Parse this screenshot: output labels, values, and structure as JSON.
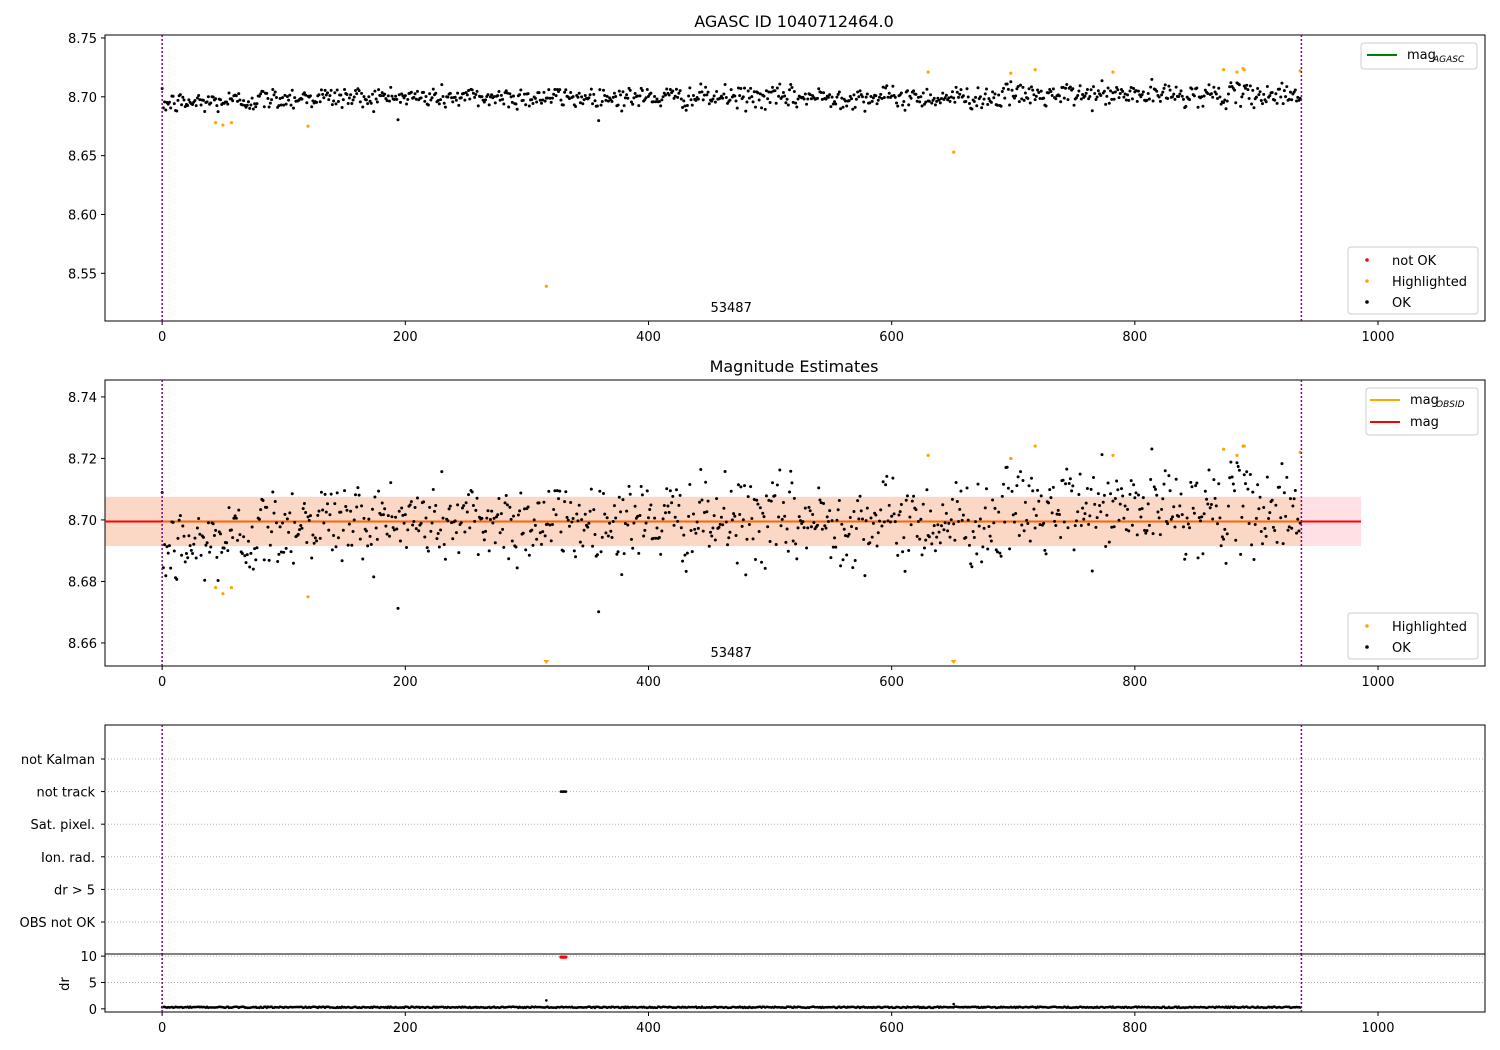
{
  "figure_title": "AGASC ID 1040712464.0",
  "colors": {
    "ok": "#000000",
    "highlighted": "#ffa500",
    "not_ok": "#ff0000",
    "mag_agasc_line": "#008000",
    "mag_obsid_line": "#ffa500",
    "mag_line": "#ff0000",
    "band_inner": "#fbd7c6",
    "band_outer": "#ffe0e4",
    "vline": "#800080"
  },
  "chart_data": [
    {
      "id": "agasc",
      "type": "scatter",
      "title": "AGASC ID 1040712464.0",
      "xlim": [
        -47,
        1088
      ],
      "ylim": [
        8.5095,
        8.7525
      ],
      "xticks": [
        0,
        200,
        400,
        600,
        800,
        1000
      ],
      "yticks": [
        8.55,
        8.6,
        8.65,
        8.7,
        8.75
      ],
      "ytick_labels": [
        "8.55",
        "8.60",
        "8.65",
        "8.70",
        "8.75"
      ],
      "vlines_x": [
        0,
        937
      ],
      "center_label": "53487",
      "center_label_x": 468,
      "legend_lines": [
        {
          "label": "mag",
          "subscript": "AGASC",
          "color": "#008000"
        }
      ],
      "legend_points": [
        {
          "label": "not OK",
          "color": "#ff0000"
        },
        {
          "label": "Highlighted",
          "color": "#ffa500"
        },
        {
          "label": "OK",
          "color": "#000000"
        }
      ],
      "ok_series": {
        "n": 937,
        "base": 8.6995,
        "spread": 0.0047
      },
      "highlighted_points": [
        [
          44,
          8.678
        ],
        [
          50,
          8.676
        ],
        [
          57,
          8.678
        ],
        [
          120,
          8.675
        ],
        [
          316,
          8.539
        ],
        [
          630,
          8.721
        ],
        [
          651,
          8.653
        ],
        [
          698,
          8.72
        ],
        [
          718,
          8.723
        ],
        [
          782,
          8.721
        ],
        [
          873,
          8.723
        ],
        [
          884,
          8.721
        ],
        [
          889,
          8.724
        ],
        [
          890,
          8.723
        ],
        [
          936,
          8.722
        ]
      ]
    },
    {
      "id": "estimates",
      "type": "scatter",
      "title": "Magnitude Estimates",
      "xlim": [
        -47,
        1088
      ],
      "ylim": [
        8.6525,
        8.7455
      ],
      "xticks": [
        0,
        200,
        400,
        600,
        800,
        1000
      ],
      "yticks": [
        8.66,
        8.68,
        8.7,
        8.72,
        8.74
      ],
      "ytick_labels": [
        "8.66",
        "8.68",
        "8.70",
        "8.72",
        "8.74"
      ],
      "vlines_x": [
        0,
        937
      ],
      "center_label": "53487",
      "center_label_x": 468,
      "mag_value": 8.6995,
      "band_inner": [
        8.6915,
        8.7075
      ],
      "band_outer": [
        8.6915,
        8.7075
      ],
      "band_x": [
        -47,
        986
      ],
      "band_inner_x_end": 937,
      "legend_lines": [
        {
          "label": "mag",
          "subscript": "OBSID",
          "color": "#ffa500"
        },
        {
          "label": "mag",
          "subscript": "",
          "color": "#ff0000"
        }
      ],
      "legend_points": [
        {
          "label": "Highlighted",
          "color": "#ffa500"
        },
        {
          "label": "OK",
          "color": "#000000"
        }
      ],
      "ok_series": {
        "n": 937,
        "base": 8.6995,
        "spread": 0.007
      },
      "highlighted_points": [
        [
          44,
          8.678
        ],
        [
          50,
          8.676
        ],
        [
          57,
          8.678
        ],
        [
          120,
          8.675
        ],
        [
          630,
          8.721
        ],
        [
          698,
          8.72
        ],
        [
          718,
          8.724
        ],
        [
          782,
          8.721
        ],
        [
          873,
          8.723
        ],
        [
          884,
          8.721
        ],
        [
          889,
          8.724
        ],
        [
          890,
          8.724
        ],
        [
          936,
          8.722
        ]
      ],
      "off_scale_markers_x": [
        316,
        651
      ]
    },
    {
      "id": "flags",
      "type": "scatter",
      "xlim": [
        -47,
        1088
      ],
      "categories": [
        "not Kalman",
        "not track",
        "Sat. pixel.",
        "Ion. rad.",
        "dr > 5",
        "OBS not OK"
      ],
      "vlines_x": [
        0,
        937
      ],
      "flag_points": [
        {
          "category": "not track",
          "x_start": 328,
          "x_end": 332
        }
      ]
    },
    {
      "id": "dr",
      "type": "scatter",
      "ylabel": "dr",
      "xlim": [
        -47,
        1088
      ],
      "ylim": [
        -0.6,
        10.4
      ],
      "xticks": [
        0,
        200,
        400,
        600,
        800,
        1000
      ],
      "yticks": [
        0,
        5,
        10
      ],
      "ytick_labels": [
        "0",
        "5",
        "10"
      ],
      "vlines_x": [
        0,
        937
      ],
      "ok_series": {
        "n": 937,
        "base": 0.3,
        "spread": 0.12
      },
      "outliers": [
        [
          316,
          1.6
        ],
        [
          651,
          0.9
        ]
      ],
      "not_ok_points": [
        [
          328,
          9.8
        ],
        [
          329,
          9.8
        ],
        [
          330,
          9.8
        ],
        [
          331,
          9.8
        ],
        [
          332,
          9.8
        ]
      ]
    }
  ]
}
